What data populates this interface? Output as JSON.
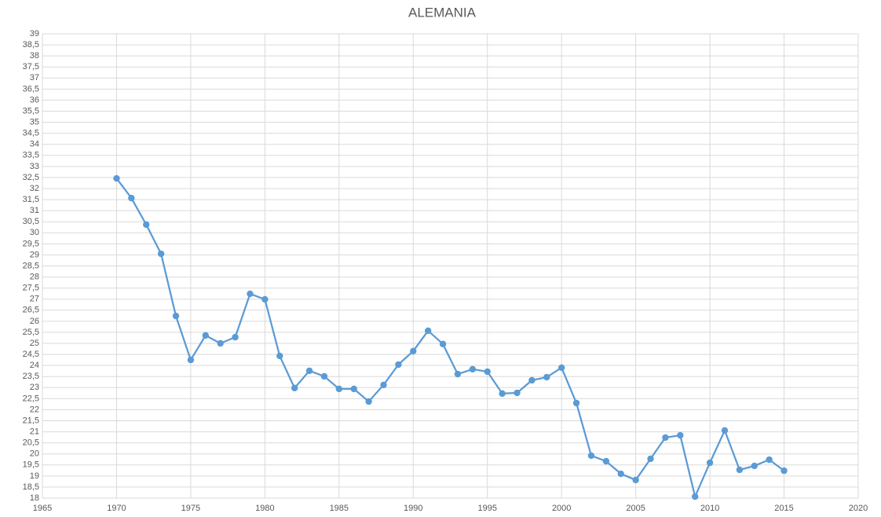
{
  "chart_data": {
    "type": "line",
    "title": "ALEMANIA",
    "x": [
      1970,
      1971,
      1972,
      1973,
      1974,
      1975,
      1976,
      1977,
      1978,
      1979,
      1980,
      1981,
      1982,
      1983,
      1984,
      1985,
      1986,
      1987,
      1988,
      1989,
      1990,
      1991,
      1992,
      1993,
      1994,
      1995,
      1996,
      1997,
      1998,
      1999,
      2000,
      2001,
      2002,
      2003,
      2004,
      2005,
      2006,
      2007,
      2008,
      2009,
      2010,
      2011,
      2012,
      2013,
      2014,
      2015
    ],
    "values": [
      32.46,
      31.57,
      30.37,
      29.05,
      26.24,
      24.25,
      25.36,
      25.0,
      25.28,
      27.24,
      26.99,
      24.43,
      22.98,
      23.76,
      23.51,
      22.94,
      22.94,
      22.37,
      23.12,
      24.04,
      24.65,
      25.57,
      24.97,
      23.61,
      23.83,
      23.72,
      22.73,
      22.76,
      23.33,
      23.47,
      23.9,
      22.3,
      19.92,
      19.67,
      19.1,
      18.82,
      19.78,
      20.74,
      20.84,
      18.07,
      19.6,
      21.06,
      19.28,
      19.46,
      19.74,
      19.24
    ],
    "color": "#5b9bd5",
    "xlim": [
      1965,
      2020
    ],
    "xticks": [
      1965,
      1970,
      1975,
      1980,
      1985,
      1990,
      1995,
      2000,
      2005,
      2010,
      2015,
      2020
    ],
    "ylim": [
      18,
      39
    ],
    "yticks": [
      18,
      {
        "value": 18.5,
        "label": "18,5"
      },
      19,
      {
        "value": 19.5,
        "label": "19,5"
      },
      20,
      {
        "value": 20.5,
        "label": "20,5"
      },
      21,
      {
        "value": 21.5,
        "label": "21,5"
      },
      22,
      {
        "value": 22.5,
        "label": "22,5"
      },
      23,
      {
        "value": 23.5,
        "label": "23,5"
      },
      24,
      {
        "value": 24.5,
        "label": "24,5"
      },
      25,
      {
        "value": 25.5,
        "label": "25,5"
      },
      26,
      {
        "value": 26.5,
        "label": "26,5"
      },
      27,
      {
        "value": 27.5,
        "label": "27,5"
      },
      28,
      {
        "value": 28.5,
        "label": "28,5"
      },
      29,
      {
        "value": 29.5,
        "label": "29,5"
      },
      30,
      {
        "value": 30.5,
        "label": "30,5"
      },
      31,
      {
        "value": 31.5,
        "label": "31,5"
      },
      32,
      {
        "value": 32.5,
        "label": "32,5"
      },
      33,
      {
        "value": 33.5,
        "label": "33,5"
      },
      34,
      {
        "value": 34.5,
        "label": "34,5"
      },
      35,
      {
        "value": 35.5,
        "label": "35,5"
      },
      36,
      {
        "value": 36.5,
        "label": "36,5"
      },
      37,
      {
        "value": 37.5,
        "label": "37,5"
      },
      38,
      {
        "value": 38.5,
        "label": "38,5"
      },
      39
    ],
    "grid": true
  }
}
